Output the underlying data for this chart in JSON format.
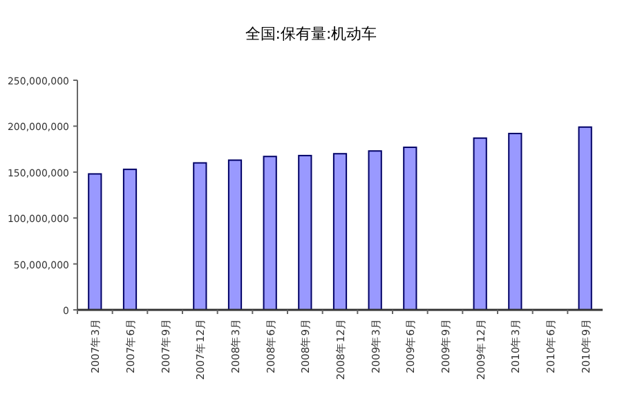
{
  "chart_data": {
    "type": "bar",
    "title": "全国:保有量:机动车",
    "categories": [
      "2007年3月",
      "2007年6月",
      "2007年9月",
      "2007年12月",
      "2008年3月",
      "2008年6月",
      "2008年9月",
      "2008年12月",
      "2009年3月",
      "2009年6月",
      "2009年9月",
      "2009年12月",
      "2010年3月",
      "2010年6月",
      "2010年9月"
    ],
    "values": [
      148000000,
      153000000,
      null,
      160000000,
      163000000,
      167000000,
      168000000,
      170000000,
      173000000,
      177000000,
      null,
      187000000,
      192000000,
      null,
      199000000
    ],
    "color": "#9999ff",
    "ylim": [
      0,
      250000000
    ],
    "yticks": [
      {
        "value": 0,
        "label": "0"
      },
      {
        "value": 50000000,
        "label": "50,000,000"
      },
      {
        "value": 100000000,
        "label": "100,000,000"
      },
      {
        "value": 150000000,
        "label": "150,000,000"
      },
      {
        "value": 200000000,
        "label": "200,000,000"
      },
      {
        "value": 250000000,
        "label": "250,000,000"
      }
    ],
    "grid": false
  }
}
